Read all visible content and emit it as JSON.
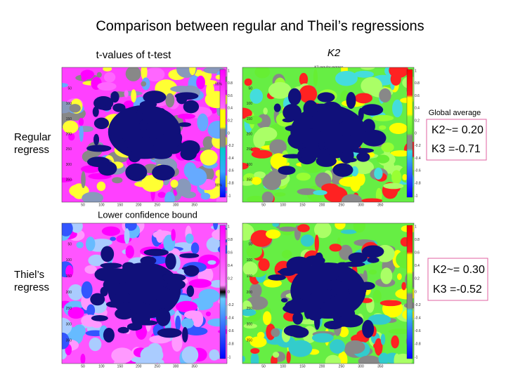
{
  "title": "Comparison between regular and Theil’s regressions",
  "column_headers": [
    "t-values of t-test",
    "K2"
  ],
  "row_labels": [
    "Regular regress",
    "Thiel’s regress"
  ],
  "top_right_map_title": "K2 regular regress",
  "top_left_colorbar_labels": [
    "95%",
    "90%"
  ],
  "annotations": {
    "global_average": "Global average",
    "lower_confidence_bound": "Lower confidence bound"
  },
  "results": [
    {
      "k2": "K2~= 0.20",
      "k3": "K3 =-0.71"
    },
    {
      "k2": "K2~= 0.30",
      "k3": "K3 =-0.52"
    }
  ],
  "map_x_ticks": [
    "50",
    "100",
    "150",
    "200",
    "250",
    "300",
    "350"
  ],
  "map_y_ticks": [
    "50",
    "100",
    "150",
    "200",
    "250",
    "300",
    "350"
  ],
  "colorbar_ticks": [
    "1",
    "0.8",
    "0.6",
    "0.4",
    "0.2",
    "0",
    "-0.2",
    "-0.4",
    "-0.6",
    "-0.8",
    "-1"
  ]
}
